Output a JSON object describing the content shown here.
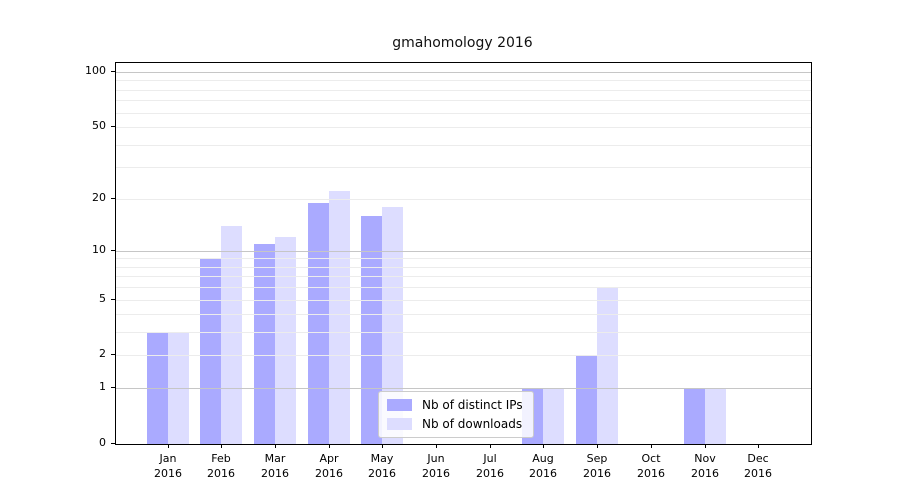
{
  "chart_data": {
    "type": "bar",
    "title": "gmahomology 2016",
    "xlabel": "",
    "ylabel": "",
    "y_scale": "log1p",
    "ylim": [
      0,
      112
    ],
    "grid": "on",
    "legend_position": "lower center",
    "categories": [
      "Jan",
      "Feb",
      "Mar",
      "Apr",
      "May",
      "Jun",
      "Jul",
      "Aug",
      "Sep",
      "Oct",
      "Nov",
      "Dec"
    ],
    "x_sublabel": "2016",
    "series": [
      {
        "name": "Nb of distinct IPs",
        "color": "#aaaaff",
        "values": [
          3,
          9,
          11,
          19,
          16,
          0,
          0,
          1,
          2,
          0,
          1,
          0
        ]
      },
      {
        "name": "Nb of downloads",
        "color": "#ddddff",
        "values": [
          3,
          14,
          12,
          22,
          18,
          0,
          0,
          1,
          6,
          0,
          1,
          0
        ]
      }
    ],
    "yticks": [
      0,
      1,
      2,
      5,
      10,
      20,
      50,
      100
    ],
    "grid_major_values": [
      1,
      10,
      100
    ],
    "grid_minor_values": [
      2,
      3,
      4,
      5,
      6,
      7,
      8,
      9,
      20,
      30,
      40,
      50,
      60,
      70,
      80,
      90
    ]
  },
  "colors": {
    "series_ips": "#aaaaff",
    "series_downloads": "#ddddff",
    "grid_major": "#c6c6c6",
    "grid_minor": "#ececec",
    "spine": "#000000"
  }
}
